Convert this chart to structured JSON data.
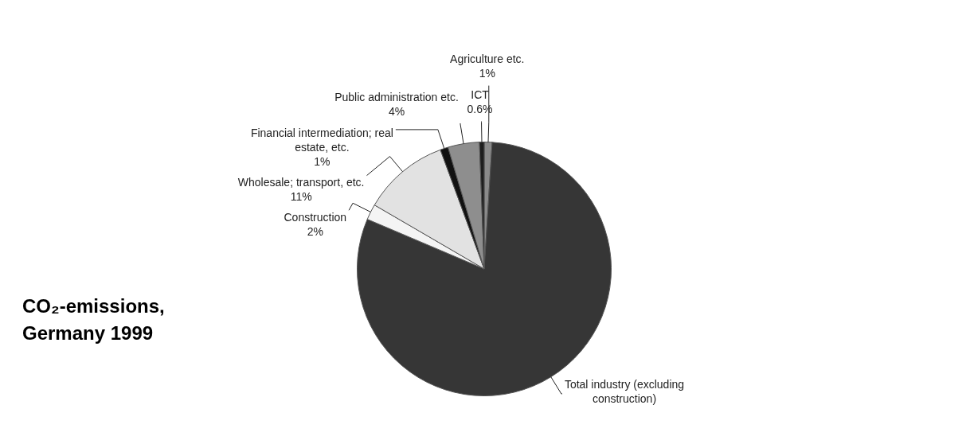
{
  "chart_data": {
    "type": "pie",
    "title": "CO₂-emissions, Germany 1999",
    "categories": [
      "Agriculture etc.",
      "Total industry (excluding construction)",
      "Construction",
      "Wholesale; transport, etc.",
      "Financial intermediation; real estate, etc.",
      "Public administration etc.",
      "ICT"
    ],
    "values": [
      1,
      80.4,
      2,
      11,
      1,
      4,
      0.6
    ],
    "value_labels": [
      "1%",
      null,
      "2%",
      "11%",
      "1%",
      "4%",
      "0.6%"
    ],
    "colors": [
      "#8a8a8a",
      "#363636",
      "#f4f4f4",
      "#e2e2e2",
      "#111111",
      "#8e8e8e",
      "#1e1e1e"
    ],
    "legend": false
  }
}
